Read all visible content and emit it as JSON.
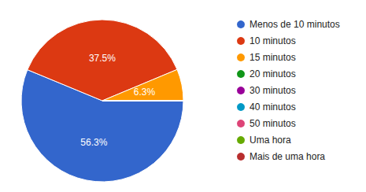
{
  "chart_data": {
    "type": "pie",
    "categories": [
      "Menos de 10 minutos",
      "10 minutos",
      "15 minutos",
      "20 minutos",
      "30 minutos",
      "40 minutos",
      "50 minutos",
      "Uma hora",
      "Mais de uma hora"
    ],
    "values": [
      56.3,
      37.5,
      6.3,
      0,
      0,
      0,
      0,
      0,
      0
    ],
    "value_labels": [
      "56.3%",
      "37.5%",
      "6.3%",
      null,
      null,
      null,
      null,
      null,
      null
    ],
    "colors": [
      "#3366cc",
      "#dc3912",
      "#ff9900",
      "#109618",
      "#990099",
      "#0099c6",
      "#dd4477",
      "#66aa00",
      "#b82e2e"
    ],
    "legend": "right",
    "data_labels": true
  }
}
